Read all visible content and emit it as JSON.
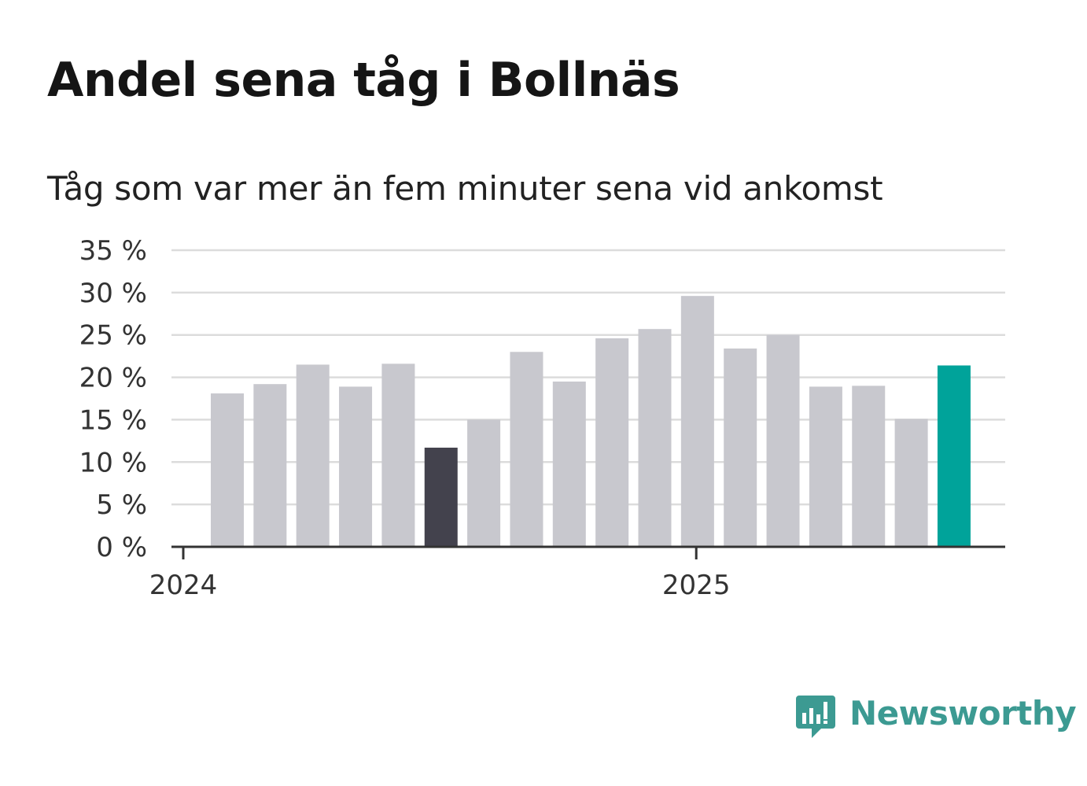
{
  "title": "Andel sena tåg i Bollnäs",
  "subtitle": "Tåg som var mer än fem minuter sena vid ankomst",
  "brand": {
    "name": "Newsworthy",
    "icon": "newsworthy-logo-icon",
    "color": "#3c9a92"
  },
  "colors": {
    "bar": "#c8c8ce",
    "bar_low": "#43424d",
    "bar_latest": "#00a39a",
    "grid": "#dcdcdc",
    "axis": "#333333"
  },
  "chart_data": {
    "type": "bar",
    "title": "Andel sena tåg i Bollnäs",
    "subtitle": "Tåg som var mer än fem minuter sena vid ankomst",
    "xlabel": "",
    "ylabel": "",
    "x_ticks": [
      {
        "label": "2024",
        "index": 0
      },
      {
        "label": "2025",
        "index": 12
      }
    ],
    "y_ticks": [
      "0 %",
      "5 %",
      "10 %",
      "15 %",
      "20 %",
      "25 %",
      "30 %",
      "35 %"
    ],
    "y_tick_values": [
      0,
      5,
      10,
      15,
      20,
      25,
      30,
      35
    ],
    "ylim": [
      0,
      35
    ],
    "grid": true,
    "legend": "none",
    "values": [
      18.1,
      19.2,
      21.5,
      18.9,
      21.6,
      11.7,
      15.0,
      23.0,
      19.5,
      24.6,
      25.7,
      29.6,
      23.4,
      25.0,
      18.9,
      19.0,
      15.1,
      21.4
    ],
    "highlight": {
      "lowest_index": 5,
      "latest_index": 17
    }
  }
}
